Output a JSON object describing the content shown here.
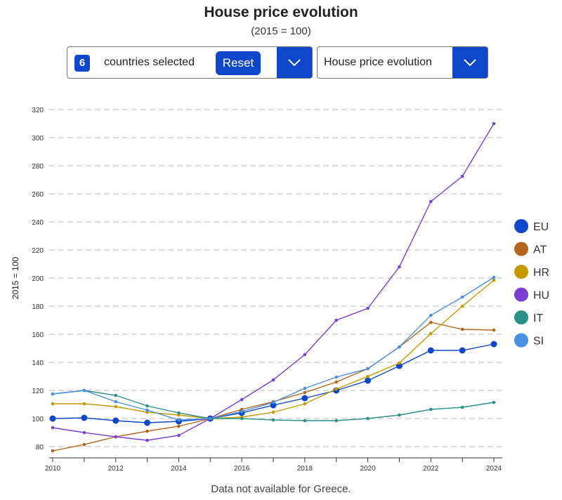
{
  "header": {
    "title": "House price evolution",
    "subtitle": "(2015 = 100)"
  },
  "controls": {
    "count": "6",
    "count_label": "countries selected",
    "reset_label": "Reset",
    "indicator": "House price evolution"
  },
  "footnote": "Data not available for Greece.",
  "chart_data": {
    "type": "line",
    "title": "House price evolution",
    "subtitle": "(2015 = 100)",
    "ylabel": "2015 = 100",
    "xlabel": "",
    "x": [
      2010,
      2011,
      2012,
      2013,
      2014,
      2015,
      2016,
      2017,
      2018,
      2019,
      2020,
      2021,
      2022,
      2023,
      2024
    ],
    "xticks": [
      "2010",
      "2012",
      "2014",
      "2016",
      "2018",
      "2020",
      "2022",
      "2024"
    ],
    "yticks": [
      "80",
      "100",
      "120",
      "140",
      "160",
      "180",
      "200",
      "220",
      "240",
      "260",
      "280",
      "300",
      "320"
    ],
    "xlim": [
      2010,
      2024
    ],
    "ylim": [
      80,
      320
    ],
    "grid": "horizontal dashed",
    "legend": "right",
    "series": [
      {
        "name": "EU",
        "color": "#0e47cb",
        "values": [
          100,
          100.5,
          98.5,
          97,
          98,
          100,
          104,
          109.5,
          114.5,
          120,
          127,
          137.5,
          148.5,
          148.5,
          153
        ]
      },
      {
        "name": "AT",
        "color": "#b5651d",
        "values": [
          77,
          81.5,
          87,
          91,
          94.5,
          100,
          106.5,
          112,
          118.5,
          126,
          135.5,
          151,
          168.5,
          163.5,
          163
        ]
      },
      {
        "name": "HR",
        "color": "#c49a00",
        "values": [
          110.5,
          110.5,
          108.5,
          104.5,
          102.5,
          100,
          101,
          104.5,
          110.5,
          121,
          130,
          139.5,
          160.5,
          180,
          198.5
        ]
      },
      {
        "name": "HU",
        "color": "#7b3fd1",
        "values": [
          93.5,
          90,
          87,
          84.5,
          88,
          100,
          113.5,
          127.5,
          145.5,
          170,
          178.5,
          208,
          254.5,
          272.5,
          310
        ]
      },
      {
        "name": "IT",
        "color": "#2a9088",
        "values": [
          117.5,
          120,
          116.5,
          109,
          104,
          100,
          100,
          99,
          98.5,
          98.5,
          100,
          102.5,
          106.5,
          108,
          111.5
        ]
      },
      {
        "name": "SI",
        "color": "#4a90e2",
        "values": [
          117.5,
          120,
          112,
          106,
          99,
          100,
          105,
          111.5,
          121.5,
          129.5,
          135.5,
          151,
          173.5,
          186.5,
          200.5
        ]
      }
    ]
  }
}
